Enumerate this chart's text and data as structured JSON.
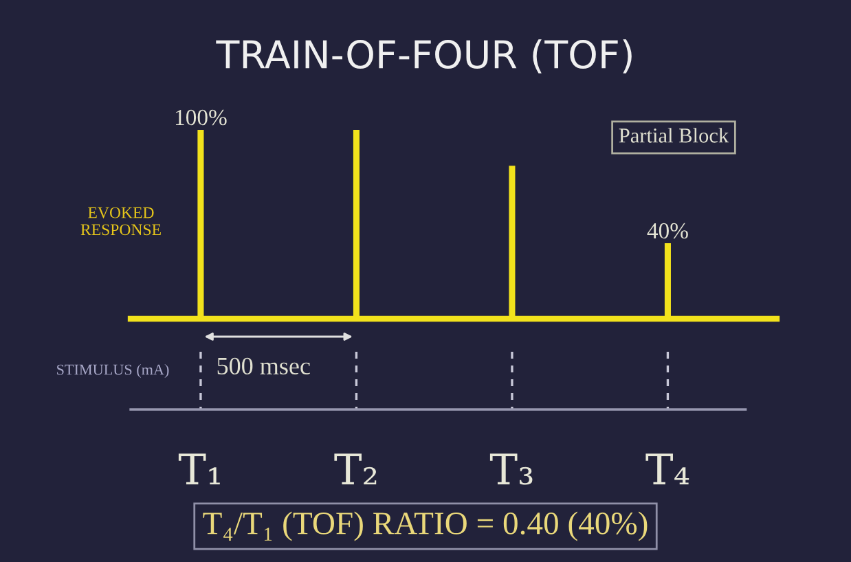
{
  "chart_data": {
    "type": "bar",
    "title": "TRAIN-OF-FOUR (TOF)",
    "ylabel": "EVOKED\nRESPONSE",
    "categories": [
      "T₁",
      "T₂",
      "T₃",
      "T₄"
    ],
    "values": [
      100,
      100,
      81,
      40
    ],
    "value_labels": [
      "100%",
      null,
      null,
      "40%"
    ],
    "color": "#f2e21c",
    "annotations": [
      "Partial Block",
      "STIMULUS (mA)",
      "500 msec",
      "T₄/T₁ (TOF) RATIO = 0.40 (40%)"
    ]
  }
}
